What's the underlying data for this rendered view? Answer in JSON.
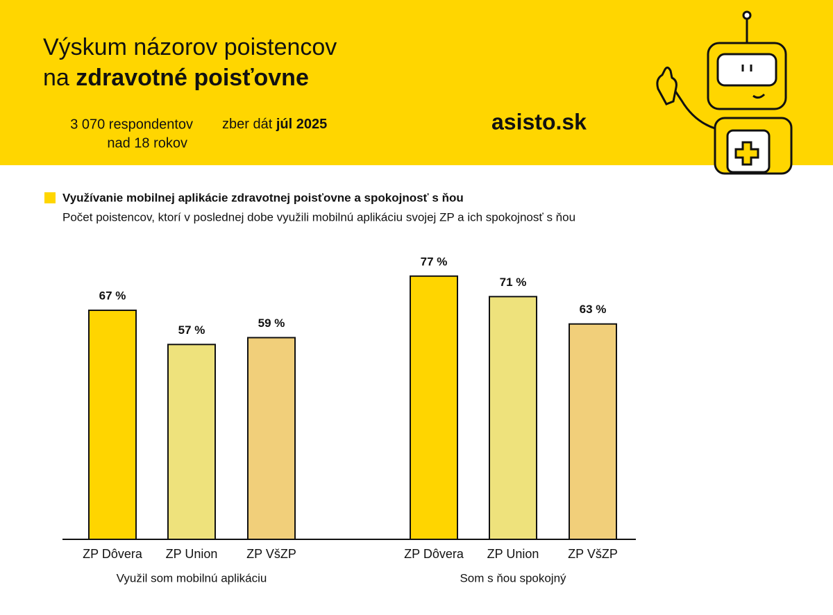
{
  "header": {
    "title_line1": "Výskum názorov poistencov",
    "title_line2_prefix": "na",
    "title_line2_bold": "zdravotné poisťovne",
    "respondents_line1": "3 070 respondentov",
    "respondents_line2": "nad 18 rokov",
    "collection_prefix": "zber dát",
    "collection_date": "júl 2025",
    "brand": "asisto.sk"
  },
  "chart_data": {
    "type": "bar",
    "title": "Využívanie mobilnej aplikácie zdravotnej poisťovne a spokojnosť s ňou",
    "subtitle": "Počet poistencov, ktorí v poslednej dobe využili mobilnú aplikáciu svojej ZP a ich spokojnosť s ňou",
    "categories": [
      "Využil som mobilnú aplikáciu",
      "Som s ňou spokojný"
    ],
    "series": [
      {
        "name": "ZP Dôvera",
        "color": "#FFD500",
        "values": [
          67,
          77
        ],
        "value_labels": [
          "67 %",
          "77 %"
        ]
      },
      {
        "name": "ZP Union",
        "color": "#EEE27C",
        "values": [
          57,
          71
        ],
        "value_labels": [
          "57 %",
          "71 %"
        ]
      },
      {
        "name": "ZP VšZP",
        "color": "#F1CF7A",
        "values": [
          59,
          63
        ],
        "value_labels": [
          "59 %",
          "63 %"
        ]
      }
    ]
  }
}
